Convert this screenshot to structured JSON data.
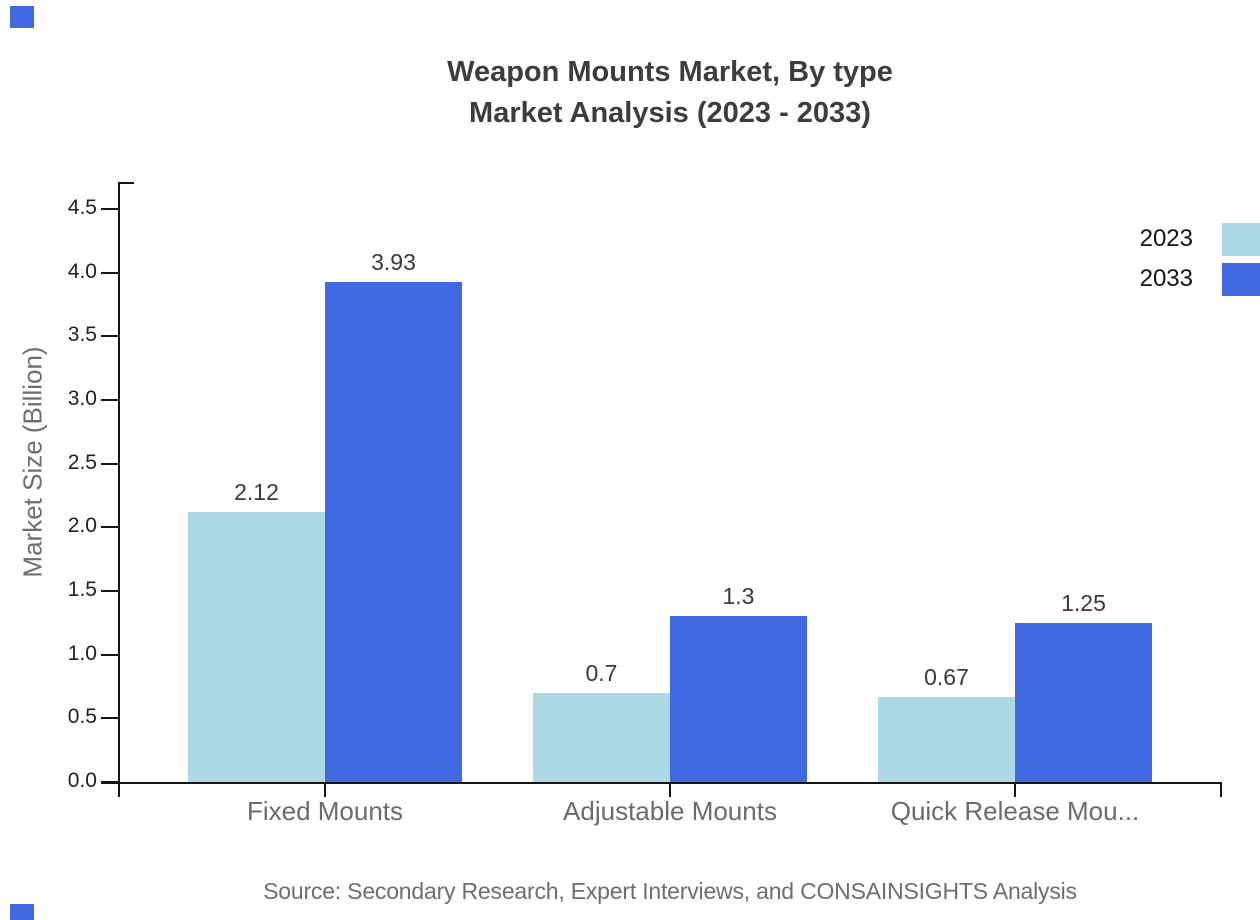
{
  "title": {
    "line1": "Weapon Mounts Market, By type",
    "line2": "Market Analysis (2023 - 2033)"
  },
  "chart_data": {
    "type": "bar",
    "categories": [
      "Fixed Mounts",
      "Adjustable Mounts",
      "Quick Release Mou..."
    ],
    "series": [
      {
        "name": "2023",
        "color": "#ADD8E6",
        "values": [
          2.12,
          0.7,
          0.67
        ]
      },
      {
        "name": "2033",
        "color": "#4169E1",
        "values": [
          3.93,
          1.3,
          1.25
        ]
      }
    ],
    "title": "Weapon Mounts Market, By type Market Analysis (2023 - 2033)",
    "xlabel": "",
    "ylabel": "Market Size (Billion)",
    "ylim": [
      0,
      4.71
    ],
    "yticks": [
      "0.0",
      "0.5",
      "1.0",
      "1.5",
      "2.0",
      "2.5",
      "3.0",
      "3.5",
      "4.0",
      "4.5"
    ],
    "grid": false,
    "legend_position": "top-right",
    "value_labels_shown": true
  },
  "source": "Source: Secondary Research, Expert Interviews, and CONSAINSIGHTS Analysis",
  "brand": {
    "accent": "#4169E1"
  }
}
